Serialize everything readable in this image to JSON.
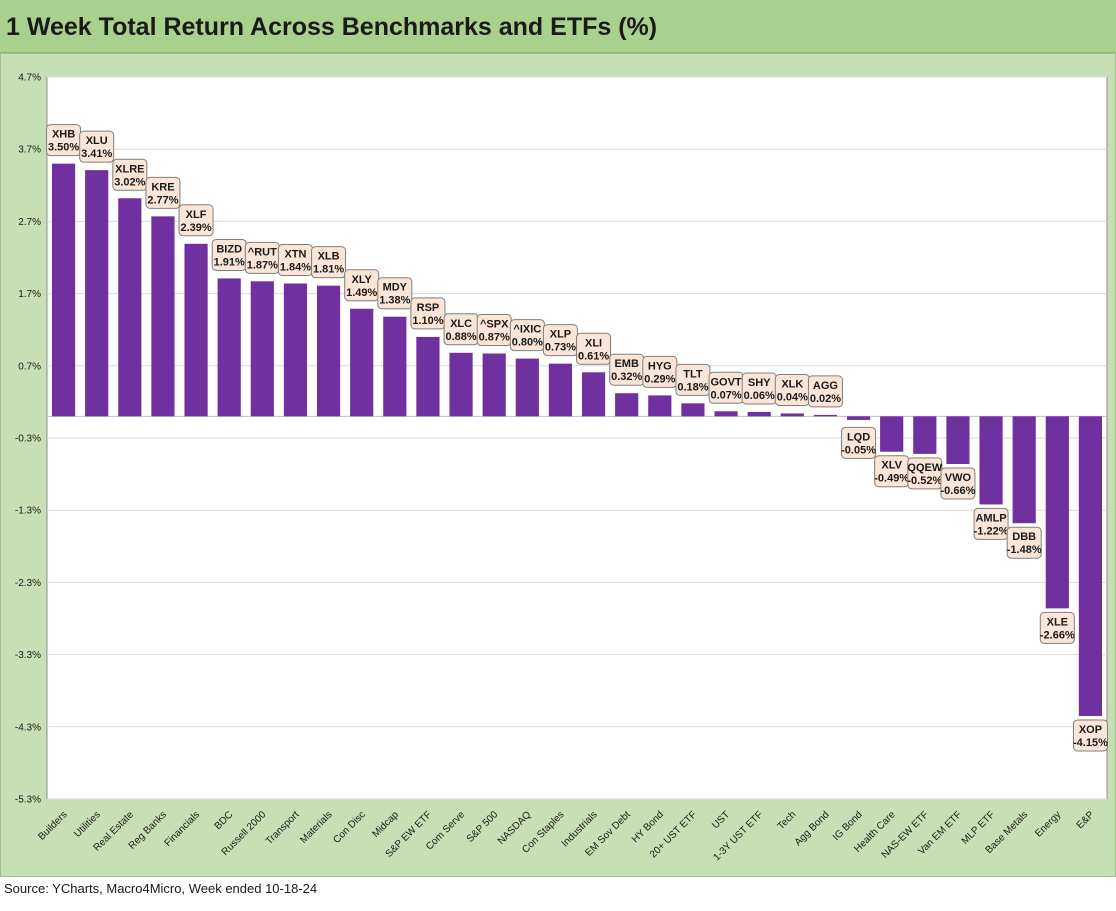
{
  "page": {
    "title": "1 Week Total Return Across Benchmarks and ETFs (%)",
    "source": "Source: YCharts, Macro4Micro, Week ended 10-18-24"
  },
  "colors": {
    "title_bg": "#a9d18e",
    "chart_bg": "#c5e0b4",
    "plot_bg": "#ffffff",
    "bar": "#7030a0",
    "label_bg": "#fbe5d6"
  },
  "chart_data": {
    "type": "bar",
    "title": "1 Week Total Return Across Benchmarks and ETFs (%)",
    "xlabel": "",
    "ylabel": "",
    "ylim": [
      -5.3,
      4.7
    ],
    "yticks": [
      4.7,
      3.7,
      2.7,
      1.7,
      0.7,
      -0.3,
      -1.3,
      -2.3,
      -3.3,
      -4.3,
      -5.3
    ],
    "ytick_labels": [
      "4.7%",
      "3.7%",
      "2.7%",
      "1.7%",
      "0.7%",
      "-0.3%",
      "-1.3%",
      "-2.3%",
      "-3.3%",
      "-4.3%",
      "-5.3%"
    ],
    "grid": "horizontal",
    "categories": [
      "Builders",
      "Utilities",
      "Real Estate",
      "Reg Banks",
      "Financials",
      "BDC",
      "Russell 2000",
      "Transport",
      "Materials",
      "Con Disc",
      "Midcap",
      "S&P EW ETF",
      "Com Serve",
      "S&P 500",
      "NASDAQ",
      "Con Staples",
      "Industrials",
      "EM Sov Debt",
      "HY Bond",
      "20+ UST ETF",
      "UST",
      "1-3Y UST ETF",
      "Tech",
      "Agg Bond",
      "IG Bond",
      "Health Care",
      "NAS-EW ETF",
      "Van EM ETF",
      "MLP ETF",
      "Base Metals",
      "Energy",
      "E&P"
    ],
    "tickers": [
      "XHB",
      "XLU",
      "XLRE",
      "KRE",
      "XLF",
      "BIZD",
      "^RUT",
      "XTN",
      "XLB",
      "XLY",
      "MDY",
      "RSP",
      "XLC",
      "^SPX",
      "^IXIC",
      "XLP",
      "XLI",
      "EMB",
      "HYG",
      "TLT",
      "GOVT",
      "SHY",
      "XLK",
      "AGG",
      "LQD",
      "XLV",
      "QQEW",
      "VWO",
      "AMLP",
      "DBB",
      "XLE",
      "XOP"
    ],
    "value_labels": [
      "3.50%",
      "3.41%",
      "3.02%",
      "2.77%",
      "2.39%",
      "1.91%",
      "1.87%",
      "1.84%",
      "1.81%",
      "1.49%",
      "1.38%",
      "1.10%",
      "0.88%",
      "0.87%",
      "0.80%",
      "0.73%",
      "0.61%",
      "0.32%",
      "0.29%",
      "0.18%",
      "0.07%",
      "0.06%",
      "0.04%",
      "0.02%",
      "-0.05%",
      "-0.49%",
      "-0.52%",
      "-0.66%",
      "-1.22%",
      "-1.48%",
      "-2.66%",
      "-4.15%"
    ],
    "values": [
      3.5,
      3.41,
      3.02,
      2.77,
      2.39,
      1.91,
      1.87,
      1.84,
      1.81,
      1.49,
      1.38,
      1.1,
      0.88,
      0.87,
      0.8,
      0.73,
      0.61,
      0.32,
      0.29,
      0.18,
      0.07,
      0.06,
      0.04,
      0.02,
      -0.05,
      -0.49,
      -0.52,
      -0.66,
      -1.22,
      -1.48,
      -2.66,
      -4.15
    ]
  }
}
